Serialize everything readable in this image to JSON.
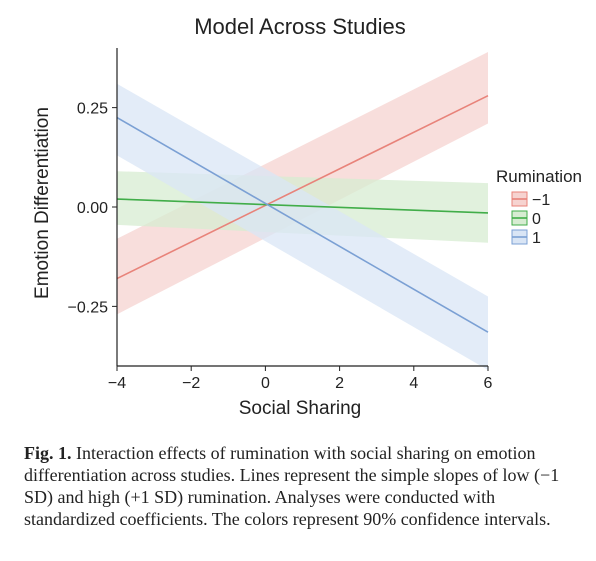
{
  "chart_data": {
    "type": "line",
    "title": "Model Across Studies",
    "xlabel": "Social Sharing",
    "ylabel": "Emotion Differentiation",
    "xlim": [
      -4,
      6
    ],
    "ylim": [
      -0.4,
      0.4
    ],
    "xticks": [
      "−4",
      "−2",
      "0",
      "2",
      "4",
      "6"
    ],
    "xtick_values": [
      -4,
      -2,
      0,
      2,
      4,
      6
    ],
    "yticks": [
      "0.25",
      "0.00",
      "−0.25"
    ],
    "ytick_values": [
      0.25,
      0.0,
      -0.25
    ],
    "grid": false,
    "legend": {
      "title": "Rumination",
      "position": "right"
    },
    "x": [
      -4,
      6
    ],
    "series": [
      {
        "name": "−1",
        "color": "#e8837a",
        "band": "#f6d3d0",
        "y": [
          -0.18,
          0.28
        ],
        "lower": [
          -0.27,
          0.21
        ],
        "upper": [
          -0.08,
          0.39
        ]
      },
      {
        "name": "0",
        "color": "#41ad49",
        "band": "#d7ecd2",
        "y": [
          0.02,
          -0.015
        ],
        "lower": [
          -0.045,
          -0.09
        ],
        "upper": [
          0.09,
          0.06
        ]
      },
      {
        "name": "1",
        "color": "#7ba0d4",
        "band": "#d9e5f5",
        "y": [
          0.225,
          -0.315
        ],
        "lower": [
          0.13,
          -0.41
        ],
        "upper": [
          0.31,
          -0.225
        ]
      }
    ]
  },
  "caption": {
    "label": "Fig. 1.",
    "text": "Interaction effects of rumination with social sharing on emotion differentiation across studies. Lines represent the simple slopes of low (−1 SD) and high (+1 SD) rumination. Analyses were conducted with standardized coefficients. The colors represent 90% confidence intervals."
  }
}
